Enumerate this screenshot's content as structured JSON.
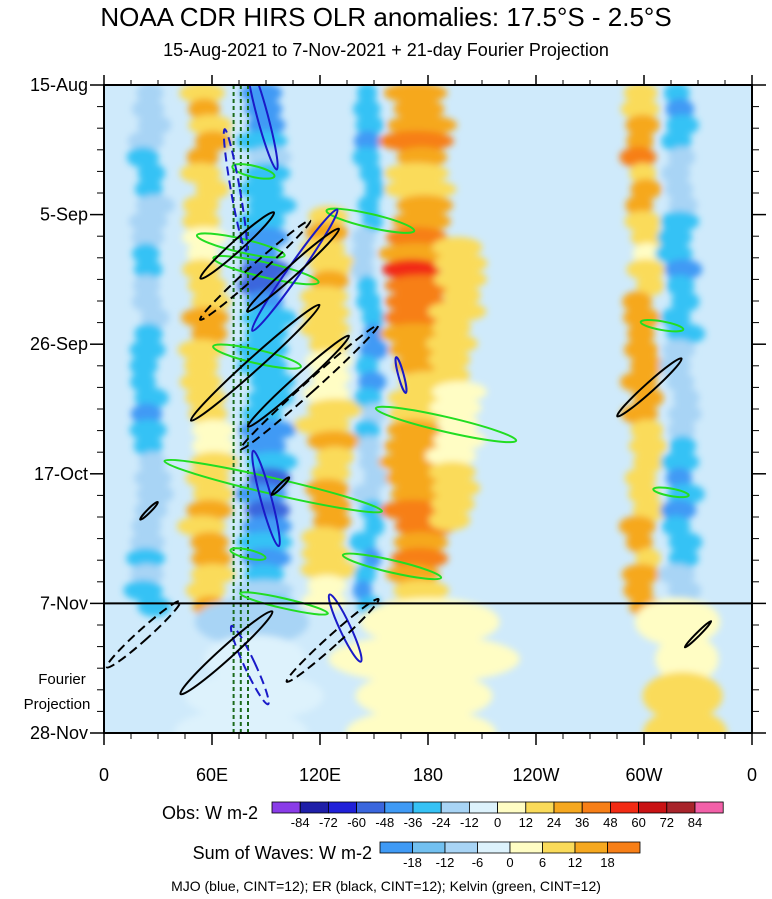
{
  "chart_data": {
    "type": "heatmap",
    "title": "NOAA CDR HIRS OLR anomalies: 17.5°S - 2.5°S",
    "subtitle": "15-Aug-2021 to 7-Nov-2021 + 21-day Fourier Projection",
    "x_ticks": [
      "0",
      "60E",
      "120E",
      "180",
      "120W",
      "60W",
      "0"
    ],
    "x_range_deg": [
      0,
      360
    ],
    "y_ticks": [
      "15-Aug",
      "5-Sep",
      "26-Sep",
      "17-Oct",
      "7-Nov",
      "28-Nov"
    ],
    "y_range_days": [
      0,
      105
    ],
    "obs_end_day": 84,
    "projection_label_line1": "Fourier",
    "projection_label_line2": "Projection",
    "obs_legend": {
      "label": "Obs: W m-2",
      "levels": [
        "-84",
        "-72",
        "-60",
        "-48",
        "-36",
        "-24",
        "-12",
        "0",
        "12",
        "24",
        "36",
        "48",
        "60",
        "72",
        "84"
      ],
      "colors": [
        "#8a3ce8",
        "#1f1fa8",
        "#2020d8",
        "#3a66dd",
        "#3f9af5",
        "#36c2f5",
        "#a8d4f5",
        "#ddf2fc",
        "#fffdc4",
        "#fadb5a",
        "#f6a81f",
        "#f77f17",
        "#f22b14",
        "#c91214",
        "#a8242b",
        "#f260a8"
      ]
    },
    "waves_legend": {
      "label": "Sum of Waves: W m-2",
      "levels": [
        "-18",
        "-12",
        "-6",
        "0",
        "6",
        "12",
        "18"
      ],
      "colors": [
        "#3f9af5",
        "#72c0f0",
        "#a8d4f5",
        "#ddf2fc",
        "#fffdc4",
        "#fadb5a",
        "#f6a81f",
        "#f77f17"
      ]
    },
    "contours_note": "MJO (blue, CINT=12); ER (black, CINT=12); Kelvin (green, CINT=12)",
    "wave_colors": {
      "mjo": "#1a1ac8",
      "er": "#000000",
      "kelvin": "#22dd22"
    },
    "reference_lines_lon_deg": [
      72,
      76,
      80
    ],
    "bands": [
      {
        "lon0": 15,
        "lon1": 35,
        "day0": 0,
        "day1": 84,
        "sign": -1,
        "amp": 30
      },
      {
        "lon0": 45,
        "lon1": 70,
        "day0": 0,
        "day1": 84,
        "sign": 1,
        "amp": 24
      },
      {
        "lon0": 75,
        "lon1": 105,
        "day0": 0,
        "day1": 84,
        "sign": -1,
        "amp": 45
      },
      {
        "lon0": 110,
        "lon1": 140,
        "day0": 20,
        "day1": 84,
        "sign": 1,
        "amp": 24
      },
      {
        "lon0": 140,
        "lon1": 155,
        "day0": 0,
        "day1": 84,
        "sign": -1,
        "amp": 36
      },
      {
        "lon0": 155,
        "lon1": 195,
        "day0": 0,
        "day1": 84,
        "sign": 1,
        "amp": 40
      },
      {
        "lon0": 180,
        "lon1": 210,
        "day0": 25,
        "day1": 70,
        "sign": 1,
        "amp": 18
      },
      {
        "lon0": 290,
        "lon1": 310,
        "day0": 0,
        "day1": 84,
        "sign": 1,
        "amp": 30
      },
      {
        "lon0": 310,
        "lon1": 330,
        "day0": 0,
        "day1": 84,
        "sign": -1,
        "amp": 36
      },
      {
        "lon0": 40,
        "lon1": 120,
        "day0": 84,
        "day1": 105,
        "sign": -1,
        "amp": 12
      },
      {
        "lon0": 130,
        "lon1": 230,
        "day0": 84,
        "day1": 105,
        "sign": 1,
        "amp": 6
      },
      {
        "lon0": 300,
        "lon1": 345,
        "day0": 84,
        "day1": 105,
        "sign": 1,
        "amp": 12
      }
    ],
    "mjo_contours": [
      {
        "lon": 88,
        "day": 5,
        "rx": 3,
        "ry": 9,
        "rot": -15,
        "dash": false
      },
      {
        "lon": 73,
        "day": 17,
        "rx": 2.5,
        "ry": 10,
        "rot": -10,
        "dash": true
      },
      {
        "lon": 90,
        "day": 67,
        "rx": 3,
        "ry": 8,
        "rot": -15,
        "dash": false
      },
      {
        "lon": 106,
        "day": 30,
        "rx": 3.5,
        "ry": 12,
        "rot": 35,
        "dash": false
      },
      {
        "lon": 165,
        "day": 47,
        "rx": 1.5,
        "ry": 3,
        "rot": -15,
        "dash": false
      },
      {
        "lon": 134,
        "day": 88,
        "rx": 3,
        "ry": 6,
        "rot": -25,
        "dash": false
      },
      {
        "lon": 81,
        "day": 94,
        "rx": 3,
        "ry": 7,
        "rot": -25,
        "dash": true
      }
    ],
    "er_contours": [
      {
        "lon": 74,
        "day": 26,
        "rx": 3,
        "ry": 8,
        "rot": 48,
        "dash": false
      },
      {
        "lon": 84,
        "day": 30,
        "rx": 3,
        "ry": 12,
        "rot": 48,
        "dash": true
      },
      {
        "lon": 105,
        "day": 30,
        "rx": 3,
        "ry": 10,
        "rot": 48,
        "dash": false
      },
      {
        "lon": 84,
        "day": 45,
        "rx": 3.5,
        "ry": 14,
        "rot": 48,
        "dash": false
      },
      {
        "lon": 114,
        "day": 49,
        "rx": 3,
        "ry": 15,
        "rot": 48,
        "dash": true
      },
      {
        "lon": 108,
        "day": 48,
        "rx": 3,
        "ry": 11,
        "rot": 48,
        "dash": false
      },
      {
        "lon": 303,
        "day": 49,
        "rx": 2.5,
        "ry": 7,
        "rot": 48,
        "dash": false
      },
      {
        "lon": 25,
        "day": 69,
        "rx": 1,
        "ry": 2,
        "rot": 45,
        "dash": false
      },
      {
        "lon": 98,
        "day": 65,
        "rx": 1,
        "ry": 2,
        "rot": 45,
        "dash": false
      },
      {
        "lon": 22,
        "day": 89,
        "rx": 3,
        "ry": 8,
        "rot": 48,
        "dash": true
      },
      {
        "lon": 68,
        "day": 92,
        "rx": 3.5,
        "ry": 10,
        "rot": 48,
        "dash": false
      },
      {
        "lon": 127,
        "day": 90,
        "rx": 3,
        "ry": 10,
        "rot": 48,
        "dash": true
      },
      {
        "lon": 330,
        "day": 89,
        "rx": 1,
        "ry": 3,
        "rot": 45,
        "dash": false
      }
    ],
    "kelvin_contours": [
      {
        "lon": 83,
        "day": 14,
        "rx": 12,
        "ry": 0.9,
        "rot": 13
      },
      {
        "lon": 90,
        "day": 30,
        "rx": 30,
        "ry": 1.2,
        "rot": 13
      },
      {
        "lon": 76,
        "day": 26,
        "rx": 25,
        "ry": 1.1,
        "rot": 13
      },
      {
        "lon": 148,
        "day": 22,
        "rx": 25,
        "ry": 1.1,
        "rot": 13
      },
      {
        "lon": 85,
        "day": 44,
        "rx": 25,
        "ry": 1.1,
        "rot": 13
      },
      {
        "lon": 190,
        "day": 55,
        "rx": 40,
        "ry": 1.2,
        "rot": 13
      },
      {
        "lon": 94,
        "day": 65,
        "rx": 62,
        "ry": 1.3,
        "rot": 13
      },
      {
        "lon": 80,
        "day": 76,
        "rx": 10,
        "ry": 0.7,
        "rot": 13
      },
      {
        "lon": 160,
        "day": 78,
        "rx": 28,
        "ry": 1.0,
        "rot": 13
      },
      {
        "lon": 310,
        "day": 39,
        "rx": 12,
        "ry": 0.7,
        "rot": 10
      },
      {
        "lon": 315,
        "day": 66,
        "rx": 10,
        "ry": 0.6,
        "rot": 10
      },
      {
        "lon": 100,
        "day": 84,
        "rx": 25,
        "ry": 0.8,
        "rot": 13
      }
    ]
  }
}
